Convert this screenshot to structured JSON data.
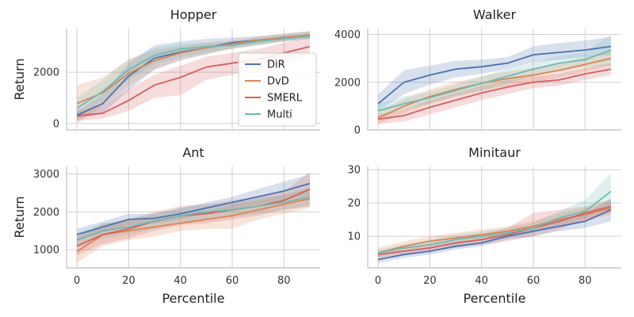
{
  "chart_data": [
    {
      "type": "line",
      "title": "Hopper",
      "xlabel": "",
      "ylabel": "Return",
      "x": [
        0,
        10,
        20,
        30,
        40,
        50,
        60,
        70,
        80,
        90
      ],
      "xlim": [
        -4,
        94
      ],
      "ylim": [
        -250,
        3700
      ],
      "xticks": [
        0,
        20,
        40,
        60,
        80
      ],
      "yticks": [
        0,
        2000
      ],
      "show_xtick_labels": false,
      "grid": true,
      "legend": "right",
      "series": [
        {
          "name": "DiR",
          "color": "#4c72b0",
          "values": [
            320,
            780,
            1850,
            2550,
            2780,
            2950,
            3150,
            3250,
            3350,
            3450
          ],
          "lower": [
            150,
            400,
            1300,
            2100,
            2450,
            2700,
            2950,
            3080,
            3200,
            3300
          ],
          "upper": [
            500,
            1150,
            2350,
            3050,
            3200,
            3300,
            3350,
            3400,
            3500,
            3600
          ]
        },
        {
          "name": "DvD",
          "color": "#dd8452",
          "values": [
            780,
            1200,
            1950,
            2450,
            2750,
            2950,
            3100,
            3250,
            3350,
            3450
          ],
          "lower": [
            0,
            700,
            1450,
            2100,
            2500,
            2700,
            2900,
            3050,
            3200,
            3300
          ],
          "upper": [
            1500,
            1800,
            2500,
            2850,
            3000,
            3150,
            3250,
            3400,
            3500,
            3600
          ]
        },
        {
          "name": "SMERL",
          "color": "#d65f5f",
          "values": [
            300,
            400,
            900,
            1500,
            1800,
            2200,
            2350,
            2500,
            2750,
            3000
          ],
          "lower": [
            100,
            200,
            500,
            1000,
            1100,
            1700,
            1900,
            2100,
            2350,
            2700
          ],
          "upper": [
            500,
            700,
            1350,
            1900,
            2250,
            2600,
            2750,
            2900,
            3150,
            3350
          ]
        },
        {
          "name": "Multi",
          "color": "#6fb9b3",
          "values": [
            600,
            1250,
            2100,
            2650,
            2900,
            3000,
            3050,
            3200,
            3300,
            3400
          ],
          "lower": [
            200,
            900,
            1700,
            2300,
            2600,
            2750,
            2900,
            3050,
            3200,
            3300
          ],
          "upper": [
            1000,
            1700,
            2500,
            2950,
            3100,
            3150,
            3200,
            3350,
            3450,
            3550
          ]
        }
      ]
    },
    {
      "type": "line",
      "title": "Walker",
      "xlabel": "",
      "ylabel": "",
      "x": [
        0,
        10,
        20,
        30,
        40,
        50,
        60,
        70,
        80,
        90
      ],
      "xlim": [
        -4,
        94
      ],
      "ylim": [
        0,
        4250
      ],
      "xticks": [
        0,
        20,
        40,
        60,
        80
      ],
      "yticks": [
        0,
        2000,
        4000
      ],
      "show_xtick_labels": false,
      "grid": true,
      "legend": "none",
      "series": [
        {
          "name": "DiR",
          "color": "#4c72b0",
          "values": [
            1100,
            2000,
            2300,
            2550,
            2650,
            2800,
            3150,
            3250,
            3350,
            3500
          ],
          "lower": [
            800,
            1500,
            1900,
            2200,
            2350,
            2550,
            2850,
            2950,
            3050,
            3150
          ],
          "upper": [
            1500,
            2500,
            2700,
            2900,
            2950,
            3050,
            3500,
            3650,
            3750,
            3900
          ]
        },
        {
          "name": "DvD",
          "color": "#dd8452",
          "values": [
            500,
            1000,
            1400,
            1700,
            1950,
            2150,
            2300,
            2500,
            2750,
            3000
          ],
          "lower": [
            250,
            700,
            1100,
            1400,
            1650,
            1850,
            2000,
            2200,
            2450,
            2700
          ],
          "upper": [
            800,
            1300,
            1700,
            2000,
            2250,
            2450,
            2600,
            2800,
            3050,
            3300
          ]
        },
        {
          "name": "SMERL",
          "color": "#d65f5f",
          "values": [
            450,
            600,
            950,
            1250,
            1550,
            1800,
            2000,
            2100,
            2350,
            2550
          ],
          "lower": [
            250,
            350,
            650,
            950,
            1250,
            1500,
            1750,
            1850,
            2100,
            2300
          ],
          "upper": [
            650,
            850,
            1250,
            1550,
            1850,
            2100,
            2250,
            2350,
            2600,
            2800
          ]
        },
        {
          "name": "Multi",
          "color": "#6fb9b3",
          "values": [
            800,
            1100,
            1350,
            1650,
            1950,
            2250,
            2550,
            2800,
            2950,
            3350
          ],
          "lower": [
            500,
            850,
            1100,
            1400,
            1650,
            1950,
            2250,
            2500,
            2650,
            2700
          ],
          "upper": [
            1100,
            1400,
            1600,
            1900,
            2250,
            2550,
            2850,
            3100,
            3250,
            4000
          ]
        }
      ]
    },
    {
      "type": "line",
      "title": "Ant",
      "xlabel": "Percentile",
      "ylabel": "Return",
      "x": [
        0,
        10,
        20,
        30,
        40,
        50,
        60,
        70,
        80,
        90
      ],
      "xlim": [
        -4,
        94
      ],
      "ylim": [
        520,
        3200
      ],
      "xticks": [
        0,
        20,
        40,
        60,
        80
      ],
      "yticks": [
        1000,
        2000,
        3000
      ],
      "show_xtick_labels": true,
      "grid": true,
      "legend": "none",
      "series": [
        {
          "name": "DiR",
          "color": "#4c72b0",
          "values": [
            1400,
            1600,
            1800,
            1830,
            1950,
            2100,
            2250,
            2400,
            2550,
            2750
          ],
          "lower": [
            1250,
            1450,
            1650,
            1700,
            1800,
            1950,
            2050,
            2200,
            2300,
            2450
          ],
          "upper": [
            1550,
            1750,
            1950,
            1950,
            2100,
            2250,
            2400,
            2600,
            2800,
            3000
          ]
        },
        {
          "name": "DvD",
          "color": "#dd8452",
          "values": [
            950,
            1400,
            1500,
            1600,
            1700,
            1800,
            1900,
            2050,
            2200,
            2350
          ],
          "lower": [
            650,
            1100,
            1250,
            1350,
            1500,
            1550,
            1550,
            1800,
            1950,
            2100
          ],
          "upper": [
            1300,
            1700,
            1750,
            1850,
            1900,
            2000,
            2200,
            2300,
            2450,
            2600
          ]
        },
        {
          "name": "SMERL",
          "color": "#d65f5f",
          "values": [
            1100,
            1400,
            1550,
            1750,
            1900,
            1950,
            2050,
            2150,
            2300,
            2600
          ],
          "lower": [
            850,
            1150,
            1300,
            1500,
            1650,
            1700,
            1800,
            1900,
            2050,
            2150
          ],
          "upper": [
            1350,
            1650,
            1800,
            2000,
            2150,
            2200,
            2300,
            2400,
            2550,
            3050
          ]
        },
        {
          "name": "Multi",
          "color": "#6fb9b3",
          "values": [
            1250,
            1500,
            1600,
            1750,
            1900,
            2000,
            2050,
            2150,
            2250,
            2400
          ],
          "lower": [
            1050,
            1300,
            1400,
            1550,
            1700,
            1800,
            1850,
            1950,
            2050,
            2150
          ],
          "upper": [
            1450,
            1700,
            1800,
            1950,
            2100,
            2200,
            2250,
            2350,
            2450,
            2650
          ]
        }
      ]
    },
    {
      "type": "line",
      "title": "Minitaur",
      "xlabel": "Percentile",
      "ylabel": "",
      "x": [
        0,
        10,
        20,
        30,
        40,
        50,
        60,
        70,
        80,
        90
      ],
      "xlim": [
        -4,
        94
      ],
      "ylim": [
        0.5,
        31
      ],
      "xticks": [
        0,
        20,
        40,
        60,
        80
      ],
      "yticks": [
        10,
        20,
        30
      ],
      "show_xtick_labels": true,
      "grid": true,
      "legend": "none",
      "series": [
        {
          "name": "DiR",
          "color": "#4c72b0",
          "values": [
            3,
            4.5,
            5.5,
            7,
            8,
            10,
            11.5,
            13,
            14.5,
            18
          ],
          "lower": [
            2,
            3.5,
            4.5,
            6,
            7,
            9,
            10,
            11.5,
            12.5,
            14.5
          ],
          "upper": [
            4,
            5.5,
            6.5,
            8,
            9,
            11,
            13,
            14.5,
            16.5,
            21.5
          ]
        },
        {
          "name": "DvD",
          "color": "#dd8452",
          "values": [
            5,
            7,
            8.5,
            9.5,
            10.5,
            11.5,
            13,
            15,
            16.5,
            18.5
          ],
          "lower": [
            4,
            5.5,
            7,
            8,
            9,
            10,
            11.5,
            13,
            14.5,
            16.5
          ],
          "upper": [
            6.5,
            8.5,
            10,
            11,
            12,
            13,
            14.5,
            17,
            18.5,
            20.5
          ]
        },
        {
          "name": "SMERL",
          "color": "#d65f5f",
          "values": [
            4.5,
            5.5,
            6.5,
            8,
            9,
            10.5,
            12.5,
            14.5,
            17,
            19
          ],
          "lower": [
            3.5,
            4.5,
            5.5,
            6.5,
            7.5,
            8.5,
            10,
            12,
            15,
            17
          ],
          "upper": [
            5.5,
            6.5,
            7.5,
            9,
            10.5,
            12.5,
            17,
            18,
            19,
            21
          ]
        },
        {
          "name": "Multi",
          "color": "#6fb9b3",
          "values": [
            5,
            6.5,
            7.5,
            9,
            10,
            11,
            12.5,
            15.5,
            17.5,
            23.5
          ],
          "lower": [
            4,
            5.5,
            6.5,
            7.5,
            8.5,
            9.5,
            11,
            13.5,
            15.5,
            19
          ],
          "upper": [
            6,
            7.5,
            9,
            10.5,
            11.5,
            12.5,
            14,
            17.5,
            21,
            29
          ]
        }
      ]
    }
  ]
}
